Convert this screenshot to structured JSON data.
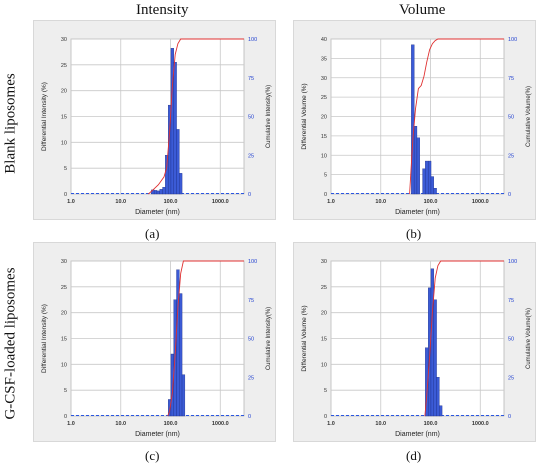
{
  "header": {
    "col_left": "Intensity",
    "col_right": "Volume",
    "row_top": "Blank liposomes",
    "row_bottom": "G-CSF-loaded liposomes"
  },
  "panels": [
    {
      "label": "(a)"
    },
    {
      "label": "(b)"
    },
    {
      "label": "(c)"
    },
    {
      "label": "(d)"
    }
  ],
  "colors": {
    "bar_fill": "#3b5bd6",
    "bar_stroke": "#1a2a80",
    "cumulative_line": "#e03030",
    "baseline_dash": "#2b56e0",
    "right_axis_ticks": "#1f3fd0",
    "panel_bg": "#eeeeee"
  },
  "chart_data": [
    {
      "type": "bar",
      "xscale": "log",
      "xlim": [
        1,
        3000
      ],
      "xticks": [
        "1.0",
        "10.0",
        "100.0",
        "1000.0"
      ],
      "xlabel": "Diameter (nm)",
      "ylabel": "Differential Intensity (%)",
      "ylim": [
        0,
        30
      ],
      "yticks": [
        "0",
        "5",
        "10",
        "15",
        "20",
        "25",
        "30"
      ],
      "y2label": "Cumulative Intensity(%)",
      "y2lim": [
        0,
        100
      ],
      "y2ticks": [
        "0",
        "25",
        "50",
        "75",
        "100"
      ],
      "grid": true,
      "bars": [
        {
          "x": 44,
          "value": 0.8
        },
        {
          "x": 50,
          "value": 0.7
        },
        {
          "x": 57,
          "value": 0.6
        },
        {
          "x": 65,
          "value": 0.9
        },
        {
          "x": 74,
          "value": 1.3
        },
        {
          "x": 84,
          "value": 7.5
        },
        {
          "x": 96,
          "value": 17.2
        },
        {
          "x": 109,
          "value": 28.2
        },
        {
          "x": 124,
          "value": 25.5
        },
        {
          "x": 141,
          "value": 12.5
        },
        {
          "x": 160,
          "value": 4.0
        }
      ],
      "cumulative": [
        [
          36,
          0
        ],
        [
          44,
          2.5
        ],
        [
          57,
          6
        ],
        [
          74,
          11
        ],
        [
          84,
          17
        ],
        [
          96,
          40
        ],
        [
          109,
          70
        ],
        [
          124,
          90
        ],
        [
          141,
          97
        ],
        [
          160,
          100
        ],
        [
          3000,
          100
        ]
      ]
    },
    {
      "type": "bar",
      "xscale": "log",
      "xlim": [
        1,
        3000
      ],
      "xticks": [
        "1.0",
        "10.0",
        "100.0",
        "1000.0"
      ],
      "xlabel": "Diameter (nm)",
      "ylabel": "Differential Volume (%)",
      "ylim": [
        0,
        40
      ],
      "yticks": [
        "0",
        "5",
        "10",
        "15",
        "20",
        "25",
        "30",
        "35",
        "40"
      ],
      "y2label": "Cumulative Volume(%)",
      "y2lim": [
        0,
        100
      ],
      "y2ticks": [
        "0",
        "25",
        "50",
        "75",
        "100"
      ],
      "grid": true,
      "bars": [
        {
          "x": 44,
          "value": 38.5
        },
        {
          "x": 50,
          "value": 17.5
        },
        {
          "x": 57,
          "value": 14.5
        },
        {
          "x": 74,
          "value": 6.5
        },
        {
          "x": 84,
          "value": 8.5
        },
        {
          "x": 96,
          "value": 8.5
        },
        {
          "x": 109,
          "value": 4.5
        },
        {
          "x": 124,
          "value": 1.5
        }
      ],
      "cumulative": [
        [
          38,
          0
        ],
        [
          44,
          35
        ],
        [
          50,
          55
        ],
        [
          57,
          68
        ],
        [
          65,
          70
        ],
        [
          74,
          76
        ],
        [
          84,
          85
        ],
        [
          96,
          93
        ],
        [
          109,
          97
        ],
        [
          124,
          99
        ],
        [
          141,
          100
        ],
        [
          3000,
          100
        ]
      ]
    },
    {
      "type": "bar",
      "xscale": "log",
      "xlim": [
        1,
        3000
      ],
      "xticks": [
        "1.0",
        "10.0",
        "100.0",
        "1000.0"
      ],
      "xlabel": "Diameter (nm)",
      "ylabel": "Differential Intensity (%)",
      "ylim": [
        0,
        30
      ],
      "yticks": [
        "0",
        "5",
        "10",
        "15",
        "20",
        "25",
        "30"
      ],
      "y2label": "Cumulative Intensity(%)",
      "y2lim": [
        0,
        100
      ],
      "y2ticks": [
        "0",
        "25",
        "50",
        "75",
        "100"
      ],
      "grid": true,
      "bars": [
        {
          "x": 96,
          "value": 3.2
        },
        {
          "x": 109,
          "value": 12.0
        },
        {
          "x": 124,
          "value": 22.5
        },
        {
          "x": 141,
          "value": 28.3
        },
        {
          "x": 160,
          "value": 23.7
        },
        {
          "x": 182,
          "value": 8.0
        }
      ],
      "cumulative": [
        [
          88,
          0
        ],
        [
          96,
          3
        ],
        [
          109,
          15
        ],
        [
          124,
          40
        ],
        [
          141,
          70
        ],
        [
          160,
          92
        ],
        [
          182,
          100
        ],
        [
          3000,
          100
        ]
      ]
    },
    {
      "type": "bar",
      "xscale": "log",
      "xlim": [
        1,
        3000
      ],
      "xticks": [
        "1.0",
        "10.0",
        "100.0",
        "1000.0"
      ],
      "xlabel": "Diameter (nm)",
      "ylabel": "Differential Volume (%)",
      "ylim": [
        0,
        30
      ],
      "yticks": [
        "0",
        "5",
        "10",
        "15",
        "20",
        "25",
        "30"
      ],
      "y2label": "Cumulative Volume(%)",
      "y2lim": [
        0,
        100
      ],
      "y2ticks": [
        "0",
        "25",
        "50",
        "75",
        "100"
      ],
      "grid": true,
      "bars": [
        {
          "x": 84,
          "value": 13.2
        },
        {
          "x": 96,
          "value": 24.8
        },
        {
          "x": 109,
          "value": 28.5
        },
        {
          "x": 124,
          "value": 22.5
        },
        {
          "x": 141,
          "value": 7.5
        },
        {
          "x": 160,
          "value": 2.0
        }
      ],
      "cumulative": [
        [
          77,
          0
        ],
        [
          84,
          13
        ],
        [
          96,
          38
        ],
        [
          109,
          67
        ],
        [
          124,
          89
        ],
        [
          141,
          97
        ],
        [
          160,
          100
        ],
        [
          3000,
          100
        ]
      ]
    }
  ]
}
